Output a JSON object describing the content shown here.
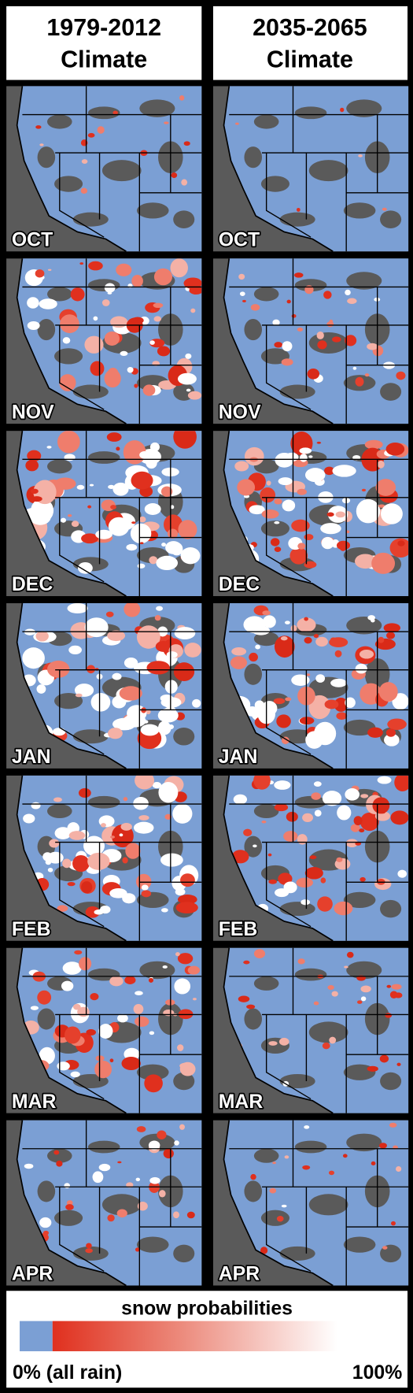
{
  "columns": [
    {
      "title_lines": [
        "1979-2012",
        "Climate"
      ]
    },
    {
      "title_lines": [
        "2035-2065",
        "Climate"
      ]
    }
  ],
  "months": [
    "OCT",
    "NOV",
    "DEC",
    "JAN",
    "FEB",
    "MAR",
    "APR"
  ],
  "legend": {
    "title": "snow probabilities",
    "min_label": "0% (all rain)",
    "max_label": "100%"
  }
}
